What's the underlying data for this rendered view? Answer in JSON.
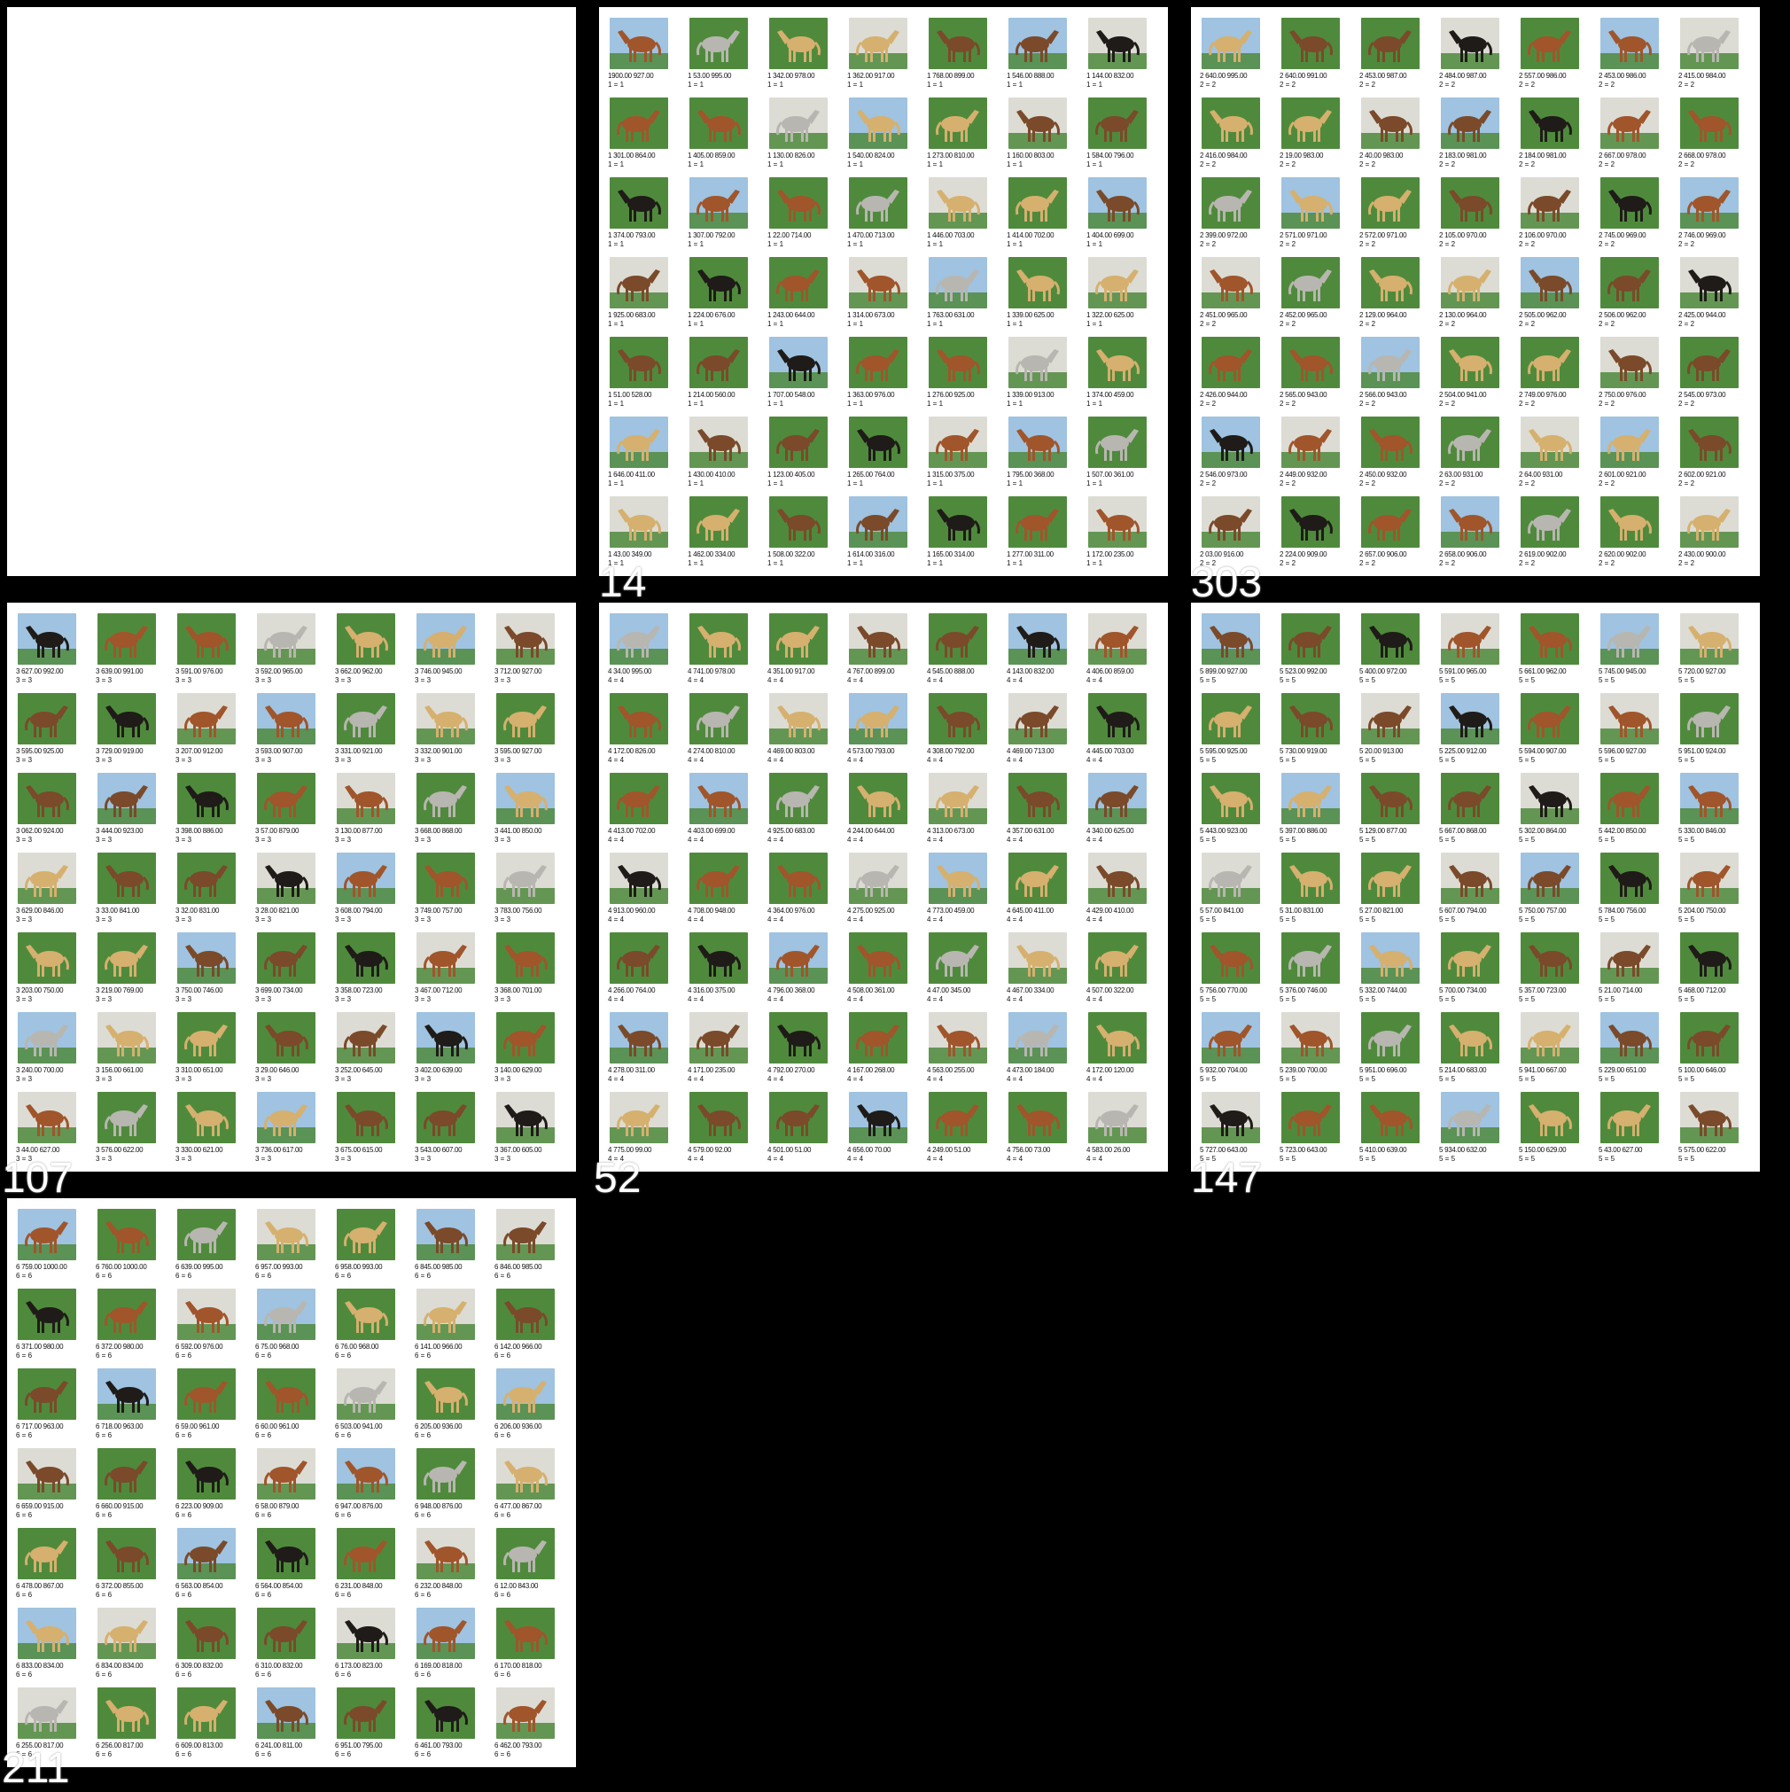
{
  "panels": [
    {
      "id": "p0",
      "label": "",
      "blank": true
    },
    {
      "id": "p1",
      "label": "1",
      "group": "1 = 1",
      "captions": [
        "1900.00 927.00",
        "1 53.00 995.00",
        "1 342.00 978.00",
        "1 362.00 917.00",
        "1 768.00 899.00",
        "1 546.00 888.00",
        "1 144.00 832.00",
        "1 301.00 864.00",
        "1 405.00 859.00",
        "1 130.00 826.00",
        "1 540.00 824.00",
        "1 273.00 810.00",
        "1 160.00 803.00",
        "1 584.00 796.00",
        "1 374.00 793.00",
        "1 307.00 792.00",
        "1 22.00 714.00",
        "1 470.00 713.00",
        "1 446.00 703.00",
        "1 414.00 702.00",
        "1 404.00 699.00",
        "1 925.00 683.00",
        "1 224.00 676.00",
        "1 243.00 644.00",
        "1 314.00 673.00",
        "1 763.00 631.00",
        "1 339.00 625.00",
        "1 322.00 625.00",
        "1 51.00 528.00",
        "1 214.00 560.00",
        "1 707.00 548.00",
        "1 363.00 976.00",
        "1 276.00 925.00",
        "1 339.00 913.00",
        "1 374.00 459.00",
        "1 646.00 411.00",
        "1 430.00 410.00",
        "1 123.00 405.00",
        "1 265.00 764.00",
        "1 315.00 375.00",
        "1 795.00 368.00",
        "1 507.00 361.00",
        "1 43.00 349.00",
        "1 462.00 334.00",
        "1 508.00 322.00",
        "1 614.00 316.00",
        "1 165.00 314.00",
        "1 277.00 311.00",
        "1 172.00 235.00"
      ]
    },
    {
      "id": "p2",
      "label": "2",
      "group": "2 = 2",
      "captions": [
        "2 640.00 995.00",
        "2 640.00 991.00",
        "2 453.00 987.00",
        "2 484.00 987.00",
        "2 557.00 986.00",
        "2 453.00 986.00",
        "2 415.00 984.00",
        "2 416.00 984.00",
        "2 19.00 983.00",
        "2 40.00 983.00",
        "2 183.00 981.00",
        "2 184.00 981.00",
        "2 667.00 978.00",
        "2 668.00 978.00",
        "2 399.00 972.00",
        "2 571.00 971.00",
        "2 572.00 971.00",
        "2 105.00 970.00",
        "2 106.00 970.00",
        "2 745.00 969.00",
        "2 746.00 969.00",
        "2 451.00 965.00",
        "2 452.00 965.00",
        "2 129.00 964.00",
        "2 130.00 964.00",
        "2 505.00 962.00",
        "2 506.00 962.00",
        "2 425.00 944.00",
        "2 426.00 944.00",
        "2 565.00 943.00",
        "2 566.00 943.00",
        "2 504.00 941.00",
        "2 749.00 976.00",
        "2 750.00 976.00",
        "2 545.00 973.00",
        "2 546.00 973.00",
        "2 449.00 932.00",
        "2 450.00 932.00",
        "2 63.00 931.00",
        "2 64.00 931.00",
        "2 601.00 921.00",
        "2 602.00 921.00",
        "2 03.00 916.00",
        "2 224.00 909.00",
        "2 657.00 906.00",
        "2 658.00 906.00",
        "2 619.00 902.00",
        "2 620.00 902.00",
        "2 430.00 900.00"
      ]
    },
    {
      "id": "p3",
      "label": "3",
      "group": "3 = 3",
      "captions": [
        "3 627.00 992.00",
        "3 639.00 991.00",
        "3 591.00 976.00",
        "3 592.00 965.00",
        "3 662.00 962.00",
        "3 746.00 945.00",
        "3 712.00 927.00",
        "3 595.00 925.00",
        "3 729.00 919.00",
        "3 207.00 912.00",
        "3 593.00 907.00",
        "3 331.00 921.00",
        "3 332.00 901.00",
        "3 595.00 927.00",
        "3 062.00 924.00",
        "3 444.00 923.00",
        "3 398.00 886.00",
        "3 57.00 879.00",
        "3 130.00 877.00",
        "3 668.00 868.00",
        "3 441.00 850.00",
        "3 629.00 846.00",
        "3 33.00 841.00",
        "3 32.00 831.00",
        "3 28.00 821.00",
        "3 608.00 794.00",
        "3 749.00 757.00",
        "3 783.00 756.00",
        "3 203.00 750.00",
        "3 219.00 769.00",
        "3 750.00 746.00",
        "3 699.00 734.00",
        "3 358.00 723.00",
        "3 467.00 712.00",
        "3 368.00 701.00",
        "3 240.00 700.00",
        "3 156.00 661.00",
        "3 310.00 651.00",
        "3 29.00 646.00",
        "3 252.00 645.00",
        "3 402.00 639.00",
        "3 140.00 629.00",
        "3 44.00 627.00",
        "3 576.00 622.00",
        "3 330.00 621.00",
        "3 736.00 617.00",
        "3 675.00 615.00",
        "3 543.00 607.00",
        "3 367.00 605.00"
      ]
    },
    {
      "id": "p4",
      "label": "4",
      "group": "4 = 4",
      "captions": [
        "4 34.00 995.00",
        "4 741.00 978.00",
        "4 351.00 917.00",
        "4 767.00 899.00",
        "4 545.00 888.00",
        "4 143.00 832.00",
        "4 406.00 859.00",
        "4 172.00 826.00",
        "4 274.00 810.00",
        "4 469.00 803.00",
        "4 573.00 793.00",
        "4 308.00 792.00",
        "4 469.00 713.00",
        "4 445.00 703.00",
        "4 413.00 702.00",
        "4 403.00 699.00",
        "4 925.00 683.00",
        "4 244.00 644.00",
        "4 313.00 673.00",
        "4 357.00 631.00",
        "4 340.00 625.00",
        "4 913.00 960.00",
        "4 708.00 948.00",
        "4 364.00 976.00",
        "4 275.00 925.00",
        "4 773.00 459.00",
        "4 645.00 411.00",
        "4 429.00 410.00",
        "4 266.00 764.00",
        "4 316.00 375.00",
        "4 796.00 368.00",
        "4 508.00 361.00",
        "4 47.00 345.00",
        "4 467.00 334.00",
        "4 507.00 322.00",
        "4 278.00 311.00",
        "4 171.00 235.00",
        "4 792.00 270.00",
        "4 167.00 268.00",
        "4 563.00 255.00",
        "4 473.00 184.00",
        "4 172.00 120.00",
        "4 775.00 99.00",
        "4 579.00 92.00",
        "4 501.00 51.00",
        "4 656.00 70.00",
        "4 249.00 51.00",
        "4 756.00 73.00",
        "4 583.00 26.00"
      ]
    },
    {
      "id": "p5",
      "label": "5",
      "group": "5 = 5",
      "captions": [
        "5 899.00 927.00",
        "5 523.00 992.00",
        "5 400.00 972.00",
        "5 591.00 965.00",
        "5 661.00 962.00",
        "5 745.00 945.00",
        "5 720.00 927.00",
        "5 595.00 925.00",
        "5 730.00 919.00",
        "5 20.00 913.00",
        "5 225.00 912.00",
        "5 594.00 907.00",
        "5 596.00 927.00",
        "5 951.00 924.00",
        "5 443.00 923.00",
        "5 397.00 886.00",
        "5 129.00 877.00",
        "5 667.00 868.00",
        "5 302.00 864.00",
        "5 442.00 850.00",
        "5 330.00 846.00",
        "5 57.00 841.00",
        "5 31.00 831.00",
        "5 27.00 821.00",
        "5 607.00 794.00",
        "5 750.00 757.00",
        "5 784.00 756.00",
        "5 204.00 750.00",
        "5 756.00 770.00",
        "5 376.00 746.00",
        "5 332.00 744.00",
        "5 700.00 734.00",
        "5 357.00 723.00",
        "5 21.00 714.00",
        "5 468.00 712.00",
        "5 932.00 704.00",
        "5 239.00 700.00",
        "5 951.00 696.00",
        "5 214.00 683.00",
        "5 941.00 667.00",
        "5 229.00 651.00",
        "5 100.00 646.00",
        "5 727.00 643.00",
        "5 723.00 643.00",
        "5 410.00 639.00",
        "5 934.00 632.00",
        "5 150.00 629.00",
        "5 43.00 627.00",
        "5 575.00 622.00"
      ]
    },
    {
      "id": "p6",
      "label": "6",
      "group": "6 = 6",
      "captions": [
        "6 759.00 1000.00",
        "6 760.00 1000.00",
        "6 639.00 995.00",
        "6 957.00 993.00",
        "6 958.00 993.00",
        "6 845.00 985.00",
        "6 846.00 985.00",
        "6 371.00 980.00",
        "6 372.00 980.00",
        "6 592.00 976.00",
        "6 75.00 968.00",
        "6 76.00 968.00",
        "6 141.00 966.00",
        "6 142.00 966.00",
        "6 717.00 963.00",
        "6 718.00 963.00",
        "6 59.00 961.00",
        "6 60.00 961.00",
        "6 503.00 941.00",
        "6 205.00 936.00",
        "6 206.00 936.00",
        "6 659.00 915.00",
        "6 660.00 915.00",
        "6 223.00 909.00",
        "6 58.00 879.00",
        "6 947.00 876.00",
        "6 948.00 876.00",
        "6 477.00 867.00",
        "6 478.00 867.00",
        "6 372.00 855.00",
        "6 563.00 854.00",
        "6 564.00 854.00",
        "6 231.00 848.00",
        "6 232.00 848.00",
        "6 12.00 843.00",
        "6 833.00 834.00",
        "6 834.00 834.00",
        "6 309.00 832.00",
        "6 310.00 832.00",
        "6 173.00 823.00",
        "6 169.00 818.00",
        "6 170.00 818.00",
        "6 255.00 817.00",
        "6 256.00 817.00",
        "6 609.00 813.00",
        "6 241.00 811.00",
        "6 951.00 795.00",
        "6 461.00 793.00",
        "6 462.00 793.00"
      ]
    }
  ],
  "corner_numbers": {
    "p1": "14",
    "p2": "303",
    "p3": "107",
    "p4": "52",
    "p5": "147",
    "p6": "211"
  },
  "colors": {
    "frame": "#000000",
    "panel_bg": "#ffffff",
    "caption_text": "#111111",
    "grass": "#4f8a3c",
    "bay": "#7a4a2a",
    "chestnut": "#a0552b",
    "palomino": "#d6b06e",
    "black": "#1f1b18",
    "grey": "#b8b6b0",
    "sky": "#9fc3e0"
  }
}
